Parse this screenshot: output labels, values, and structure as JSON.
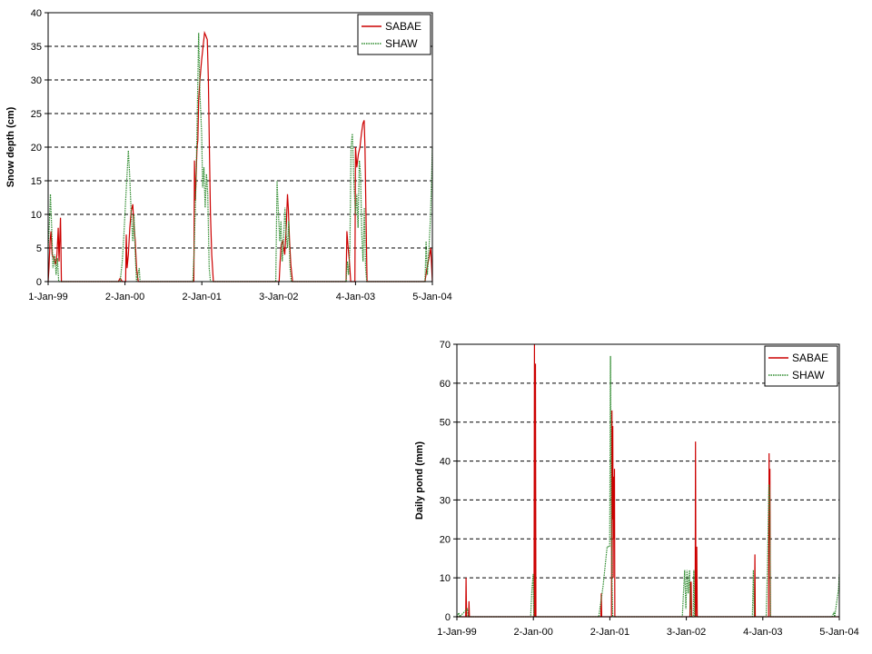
{
  "chart_data": [
    {
      "type": "line",
      "title": "",
      "xlabel": "",
      "ylabel": "Snow depth (cm)",
      "ylim": [
        0,
        40
      ],
      "yticks": [
        0,
        5,
        10,
        15,
        20,
        25,
        30,
        35,
        40
      ],
      "xlim": [
        "1999-01-01",
        "2004-01-05"
      ],
      "xtick_labels": [
        "1-Jan-99",
        "2-Jan-00",
        "2-Jan-01",
        "3-Jan-02",
        "4-Jan-03",
        "5-Jan-04"
      ],
      "xtick_dates": [
        "1999-01-01",
        "2000-01-02",
        "2001-01-02",
        "2002-01-03",
        "2003-01-04",
        "2004-01-05"
      ],
      "grid": "horizontal dashed",
      "legend": "top-right",
      "series": [
        {
          "name": "SABAE",
          "color": "#cc0000",
          "points": [
            [
              "1999-01-01",
              0
            ],
            [
              "1999-01-05",
              2
            ],
            [
              "1999-01-10",
              6
            ],
            [
              "1999-01-15",
              7.5
            ],
            [
              "1999-01-20",
              4
            ],
            [
              "1999-01-28",
              3.5
            ],
            [
              "1999-02-05",
              2.5
            ],
            [
              "1999-02-12",
              4
            ],
            [
              "1999-02-18",
              8
            ],
            [
              "1999-02-22",
              3
            ],
            [
              "1999-03-01",
              9.5
            ],
            [
              "1999-03-05",
              0
            ],
            [
              "1999-12-01",
              0
            ],
            [
              "1999-12-10",
              0.5
            ],
            [
              "1999-12-20",
              0
            ],
            [
              "2000-01-05",
              0
            ],
            [
              "2000-01-08",
              7
            ],
            [
              "2000-01-12",
              2
            ],
            [
              "2000-01-18",
              4
            ],
            [
              "2000-01-25",
              8
            ],
            [
              "2000-02-01",
              10.5
            ],
            [
              "2000-02-08",
              11.5
            ],
            [
              "2000-02-12",
              9
            ],
            [
              "2000-02-20",
              6
            ],
            [
              "2000-02-26",
              2
            ],
            [
              "2000-03-05",
              0
            ],
            [
              "2000-11-25",
              0
            ],
            [
              "2000-11-28",
              18
            ],
            [
              "2000-12-02",
              12
            ],
            [
              "2000-12-06",
              16
            ],
            [
              "2000-12-10",
              20
            ],
            [
              "2000-12-14",
              21
            ],
            [
              "2000-12-18",
              27
            ],
            [
              "2000-12-24",
              30
            ],
            [
              "2001-01-01",
              33
            ],
            [
              "2001-01-08",
              35
            ],
            [
              "2001-01-15",
              37
            ],
            [
              "2001-01-22",
              36.5
            ],
            [
              "2001-01-28",
              36
            ],
            [
              "2001-02-02",
              30
            ],
            [
              "2001-02-07",
              20
            ],
            [
              "2001-02-12",
              10
            ],
            [
              "2001-02-18",
              4
            ],
            [
              "2001-02-26",
              0
            ],
            [
              "2001-12-01",
              0
            ],
            [
              "2002-01-05",
              0
            ],
            [
              "2002-01-10",
              3
            ],
            [
              "2002-01-15",
              5.5
            ],
            [
              "2002-01-22",
              6
            ],
            [
              "2002-02-01",
              4
            ],
            [
              "2002-02-08",
              8
            ],
            [
              "2002-02-14",
              13
            ],
            [
              "2002-02-18",
              11
            ],
            [
              "2002-02-24",
              6
            ],
            [
              "2002-03-02",
              2.5
            ],
            [
              "2002-03-10",
              0
            ],
            [
              "2002-11-20",
              0
            ],
            [
              "2002-11-24",
              7.5
            ],
            [
              "2002-11-30",
              5
            ],
            [
              "2002-12-06",
              3
            ],
            [
              "2002-12-12",
              0
            ],
            [
              "2003-01-01",
              0
            ],
            [
              "2003-01-04",
              20
            ],
            [
              "2003-01-10",
              17
            ],
            [
              "2003-01-18",
              19
            ],
            [
              "2003-01-25",
              20
            ],
            [
              "2003-02-01",
              22
            ],
            [
              "2003-02-08",
              23.5
            ],
            [
              "2003-02-14",
              24
            ],
            [
              "2003-02-18",
              20
            ],
            [
              "2003-02-22",
              12
            ],
            [
              "2003-02-28",
              0
            ],
            [
              "2003-12-01",
              0
            ],
            [
              "2003-12-10",
              2
            ],
            [
              "2003-12-20",
              3.5
            ],
            [
              "2003-12-28",
              5
            ],
            [
              "2004-01-02",
              2
            ],
            [
              "2004-01-05",
              0
            ]
          ]
        },
        {
          "name": "SHAW",
          "color": "#2e8b2e",
          "points": [
            [
              "1999-01-01",
              5
            ],
            [
              "1999-01-06",
              8
            ],
            [
              "1999-01-12",
              13
            ],
            [
              "1999-01-18",
              8
            ],
            [
              "1999-01-24",
              2
            ],
            [
              "1999-02-01",
              4
            ],
            [
              "1999-02-08",
              1
            ],
            [
              "1999-02-14",
              3.5
            ],
            [
              "1999-02-20",
              0
            ],
            [
              "1999-12-10",
              0
            ],
            [
              "1999-12-20",
              3
            ],
            [
              "1999-12-28",
              7
            ],
            [
              "2000-01-05",
              12
            ],
            [
              "2000-01-12",
              16
            ],
            [
              "2000-01-18",
              19.5
            ],
            [
              "2000-01-24",
              16
            ],
            [
              "2000-02-01",
              10
            ],
            [
              "2000-02-08",
              6
            ],
            [
              "2000-02-14",
              10
            ],
            [
              "2000-02-20",
              4
            ],
            [
              "2000-02-26",
              0
            ],
            [
              "2000-03-10",
              2
            ],
            [
              "2000-03-14",
              0
            ],
            [
              "2000-11-20",
              0
            ],
            [
              "2000-11-26",
              4
            ],
            [
              "2000-12-01",
              10
            ],
            [
              "2000-12-06",
              16
            ],
            [
              "2000-12-12",
              26
            ],
            [
              "2000-12-18",
              37
            ],
            [
              "2000-12-24",
              28
            ],
            [
              "2001-01-01",
              22
            ],
            [
              "2001-01-06",
              14
            ],
            [
              "2001-01-12",
              17
            ],
            [
              "2001-01-18",
              11
            ],
            [
              "2001-01-24",
              16
            ],
            [
              "2001-01-30",
              13
            ],
            [
              "2001-02-06",
              2
            ],
            [
              "2001-02-12",
              0
            ],
            [
              "2001-12-20",
              0
            ],
            [
              "2001-12-26",
              15
            ],
            [
              "2002-01-02",
              10
            ],
            [
              "2002-01-08",
              6
            ],
            [
              "2002-01-14",
              9
            ],
            [
              "2002-01-20",
              3
            ],
            [
              "2002-01-26",
              6
            ],
            [
              "2002-02-02",
              11
            ],
            [
              "2002-02-08",
              7
            ],
            [
              "2002-02-14",
              5
            ],
            [
              "2002-02-20",
              9
            ],
            [
              "2002-02-26",
              2
            ],
            [
              "2002-03-04",
              0
            ],
            [
              "2002-11-20",
              0
            ],
            [
              "2002-11-26",
              3
            ],
            [
              "2002-12-02",
              1
            ],
            [
              "2002-12-08",
              5
            ],
            [
              "2002-12-14",
              20
            ],
            [
              "2002-12-20",
              22
            ],
            [
              "2002-12-28",
              14
            ],
            [
              "2003-01-04",
              10
            ],
            [
              "2003-01-10",
              13
            ],
            [
              "2003-01-16",
              8
            ],
            [
              "2003-01-22",
              18
            ],
            [
              "2003-01-28",
              16
            ],
            [
              "2003-02-03",
              7
            ],
            [
              "2003-02-09",
              3
            ],
            [
              "2003-02-15",
              11
            ],
            [
              "2003-02-21",
              2
            ],
            [
              "2003-02-26",
              0
            ],
            [
              "2003-12-01",
              0
            ],
            [
              "2003-12-06",
              6
            ],
            [
              "2003-12-12",
              1
            ],
            [
              "2003-12-20",
              5
            ],
            [
              "2003-12-26",
              9
            ],
            [
              "2004-01-01",
              15
            ],
            [
              "2004-01-05",
              20
            ]
          ]
        }
      ]
    },
    {
      "type": "line",
      "title": "",
      "xlabel": "",
      "ylabel": "Daily pond (mm)",
      "ylim": [
        0,
        70
      ],
      "yticks": [
        0,
        10,
        20,
        30,
        40,
        50,
        60,
        70
      ],
      "xlim": [
        "1999-01-01",
        "2004-01-05"
      ],
      "xtick_labels": [
        "1-Jan-99",
        "2-Jan-00",
        "2-Jan-01",
        "3-Jan-02",
        "4-Jan-03",
        "5-Jan-04"
      ],
      "xtick_dates": [
        "1999-01-01",
        "2000-01-02",
        "2001-01-02",
        "2002-01-03",
        "2003-01-04",
        "2004-01-05"
      ],
      "grid": "horizontal dashed",
      "legend": "top-right",
      "series": [
        {
          "name": "SABAE",
          "color": "#cc0000",
          "points": [
            [
              "1999-01-01",
              0
            ],
            [
              "1999-02-12",
              0
            ],
            [
              "1999-02-14",
              10
            ],
            [
              "1999-02-16",
              0
            ],
            [
              "1999-02-26",
              0
            ],
            [
              "1999-02-28",
              4
            ],
            [
              "1999-03-02",
              0
            ],
            [
              "2000-01-05",
              0
            ],
            [
              "2000-01-07",
              70
            ],
            [
              "2000-01-09",
              0
            ],
            [
              "2000-01-12",
              65
            ],
            [
              "2000-01-14",
              0
            ],
            [
              "2000-11-20",
              0
            ],
            [
              "2000-11-22",
              6
            ],
            [
              "2000-11-24",
              0
            ],
            [
              "2001-01-10",
              0
            ],
            [
              "2001-01-12",
              53
            ],
            [
              "2001-01-14",
              25
            ],
            [
              "2001-01-16",
              49
            ],
            [
              "2001-01-18",
              10
            ],
            [
              "2001-01-20",
              36
            ],
            [
              "2001-01-22",
              20
            ],
            [
              "2001-01-24",
              38
            ],
            [
              "2001-01-26",
              0
            ],
            [
              "2002-01-20",
              0
            ],
            [
              "2002-01-22",
              9
            ],
            [
              "2002-01-24",
              2
            ],
            [
              "2002-01-26",
              9
            ],
            [
              "2002-01-28",
              0
            ],
            [
              "2002-02-14",
              0
            ],
            [
              "2002-02-16",
              45
            ],
            [
              "2002-02-18",
              0
            ],
            [
              "2002-02-22",
              18
            ],
            [
              "2002-02-24",
              0
            ],
            [
              "2002-11-25",
              0
            ],
            [
              "2002-11-27",
              16
            ],
            [
              "2002-11-29",
              0
            ],
            [
              "2003-02-01",
              0
            ],
            [
              "2003-02-03",
              42
            ],
            [
              "2003-02-05",
              20
            ],
            [
              "2003-02-07",
              38
            ],
            [
              "2003-02-09",
              0
            ],
            [
              "2004-01-05",
              0
            ]
          ]
        },
        {
          "name": "SHAW",
          "color": "#2e8b2e",
          "points": [
            [
              "1999-01-01",
              0
            ],
            [
              "1999-01-10",
              1
            ],
            [
              "1999-01-14",
              0
            ],
            [
              "1999-02-20",
              2
            ],
            [
              "1999-02-24",
              0
            ],
            [
              "1999-12-20",
              0
            ],
            [
              "1999-12-26",
              7
            ],
            [
              "2000-01-01",
              11
            ],
            [
              "2000-01-04",
              0
            ],
            [
              "2000-11-10",
              0
            ],
            [
              "2000-12-01",
              8
            ],
            [
              "2000-12-20",
              18
            ],
            [
              "2001-01-01",
              18
            ],
            [
              "2001-01-05",
              67
            ],
            [
              "2001-01-08",
              30
            ],
            [
              "2001-01-12",
              10
            ],
            [
              "2001-01-16",
              0
            ],
            [
              "2001-12-15",
              0
            ],
            [
              "2001-12-20",
              6
            ],
            [
              "2001-12-26",
              12
            ],
            [
              "2002-01-01",
              2
            ],
            [
              "2002-01-06",
              12
            ],
            [
              "2002-01-12",
              6
            ],
            [
              "2002-01-18",
              12
            ],
            [
              "2002-01-24",
              0
            ],
            [
              "2002-02-05",
              0
            ],
            [
              "2002-02-08",
              12
            ],
            [
              "2002-02-12",
              0
            ],
            [
              "2002-11-15",
              0
            ],
            [
              "2002-11-20",
              12
            ],
            [
              "2002-11-24",
              0
            ],
            [
              "2003-01-20",
              0
            ],
            [
              "2003-01-26",
              12
            ],
            [
              "2003-02-02",
              34
            ],
            [
              "2003-02-06",
              32
            ],
            [
              "2003-02-10",
              0
            ],
            [
              "2003-12-01",
              0
            ],
            [
              "2003-12-10",
              1
            ],
            [
              "2003-12-14",
              0
            ],
            [
              "2004-01-01",
              7
            ],
            [
              "2004-01-05",
              11
            ]
          ]
        }
      ]
    }
  ]
}
